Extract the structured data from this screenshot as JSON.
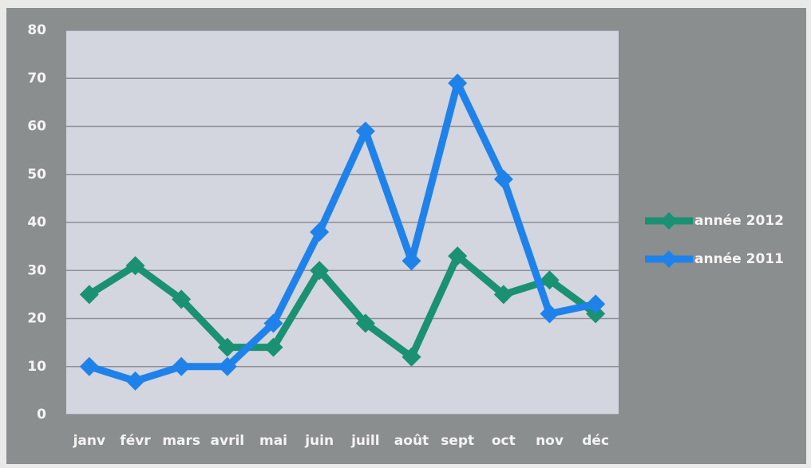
{
  "chart_data": {
    "type": "line",
    "categories": [
      "janv",
      "févr",
      "mars",
      "avril",
      "mai",
      "juin",
      "juill",
      "août",
      "sept",
      "oct",
      "nov",
      "déc"
    ],
    "series": [
      {
        "name": "année 2012",
        "color": "#1a9172",
        "values": [
          25,
          31,
          24,
          14,
          14,
          30,
          19,
          12,
          33,
          25,
          28,
          21
        ]
      },
      {
        "name": "année 2011",
        "color": "#1f82ea",
        "values": [
          10,
          7,
          10,
          10,
          19,
          38,
          59,
          32,
          69,
          49,
          21,
          23
        ]
      }
    ],
    "ylim": [
      0,
      80
    ],
    "yticks": [
      0,
      10,
      20,
      30,
      40,
      50,
      60,
      70,
      80
    ],
    "grid": true,
    "legend": "right"
  }
}
